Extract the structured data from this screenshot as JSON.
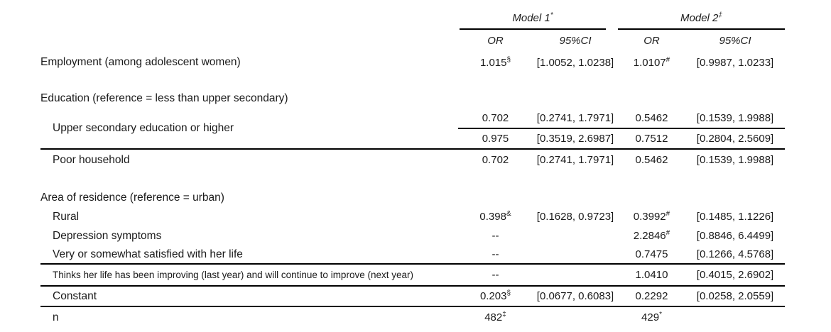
{
  "colors": {
    "background": "#ffffff",
    "text": "#1a1a1a",
    "rule": "#000000"
  },
  "header": {
    "model1": {
      "label": "Model 1",
      "sup": "*"
    },
    "model2": {
      "label": "Model 2",
      "sup": "‡"
    },
    "or_label": "OR",
    "ci_label": "95%CI"
  },
  "rows": [
    {
      "label": "Employment (among adolescent women)",
      "or1": "1.015",
      "or1_sup": "§",
      "ci1": "[1.0052, 1.0238]",
      "or2": "1.0107",
      "or2_sup": "#",
      "ci2": "[0.9987, 1.0233]"
    },
    {
      "label": "Education (reference = less than upper secondary)"
    },
    {
      "label": "Upper secondary education or higher",
      "a": {
        "or1": "0.702",
        "ci1": "[0.2741, 1.7971]",
        "or2": "0.5462",
        "ci2": "[0.1539, 1.9988]"
      },
      "b": {
        "or1": "0.975",
        "ci1": "[0.3519, 2.6987]",
        "or2": "0.7512",
        "ci2": "[0.2804, 2.5609]"
      }
    },
    {
      "label": "Poor household",
      "or1": "0.702",
      "ci1": "[0.2741, 1.7971]",
      "or2": "0.5462",
      "ci2": "[0.1539, 1.9988]"
    },
    {
      "label": "Area of residence (reference = urban)"
    },
    {
      "label": "Rural",
      "or1": "0.398",
      "or1_sup": "&",
      "ci1": "[0.1628, 0.9723]",
      "or2": "0.3992",
      "or2_sup": "#",
      "ci2": "[0.1485, 1.1226]"
    },
    {
      "label": "Depression symptoms",
      "or1": "--",
      "or2": "2.2846",
      "or2_sup": "#",
      "ci2": "[0.8846, 6.4499]"
    },
    {
      "label": "Very or somewhat satisfied with her life",
      "or1": "--",
      "or2": "0.7475",
      "ci2": "[0.1266, 4.5768]"
    },
    {
      "label": "Thinks her life has been improving (last year) and will continue to improve (next year)",
      "or1": "--",
      "or2": "1.0410",
      "ci2": "[0.4015, 2.6902]"
    },
    {
      "label": "Constant",
      "or1": "0.203",
      "or1_sup": "§",
      "ci1": "[0.0677, 0.6083]",
      "or2": "0.2292",
      "ci2": "[0.0258, 2.0559]"
    },
    {
      "label": "n",
      "or1": "482",
      "or1_sup": "‡",
      "or2": "429",
      "or2_sup": "*"
    }
  ]
}
